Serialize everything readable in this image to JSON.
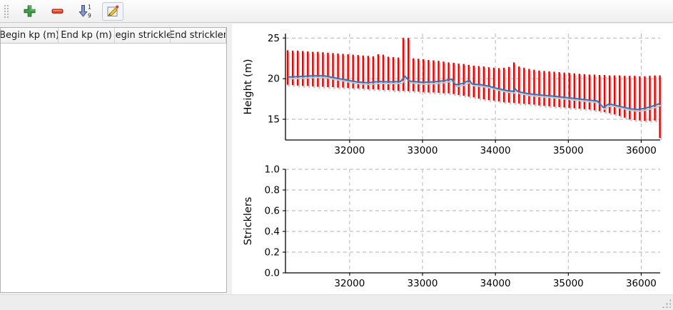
{
  "window": {
    "background": "#f0f0f0"
  },
  "toolbar": {
    "buttons": [
      {
        "id": "add-row",
        "icon": "plus-icon"
      },
      {
        "id": "remove-row",
        "icon": "minus-icon"
      },
      {
        "id": "sort-rows",
        "icon": "sort-numeric-icon",
        "sort_top_digit": "1",
        "sort_bottom_digit": "9"
      },
      {
        "id": "edit-row",
        "icon": "edit-pencil-icon"
      }
    ]
  },
  "table": {
    "columns": [
      "Begin kp (m)",
      "End kp (m)",
      "Begin strickler",
      "End strickler"
    ],
    "rows": []
  },
  "colors": {
    "bar_red": "#f40000",
    "line_blue": "#3973b7",
    "shadow_gray": "#c9c9c9",
    "grid_gray": "#b0b0b0",
    "axis_black": "#000000",
    "toolbar_green": "#3f9e46",
    "toolbar_red": "#e8402a",
    "sort_arrow_blue": "#8298c8"
  },
  "chart_data": [
    {
      "type": "line",
      "title": "",
      "xlabel": "",
      "ylabel": "Height (m)",
      "xlim": [
        31120,
        36260
      ],
      "ylim": [
        12.45,
        25.55
      ],
      "xticks": [
        32000,
        33000,
        34000,
        35000,
        36000
      ],
      "xtick_labels": [
        "32000",
        "33000",
        "34000",
        "35000",
        "36000"
      ],
      "yticks": [
        15,
        20,
        25
      ],
      "ytick_labels": [
        "15",
        "20",
        "25"
      ],
      "grid": true,
      "legend": "none",
      "bars": {
        "name": "cross-section min/max range",
        "color": "#f40000",
        "kp": [
          31150,
          31219,
          31288,
          31357,
          31426,
          31495,
          31564,
          31633,
          31702,
          31771,
          31840,
          31909,
          31978,
          32047,
          32116,
          32185,
          32254,
          32323,
          32392,
          32461,
          32530,
          32599,
          32668,
          32737,
          32806,
          32875,
          32944,
          33013,
          33082,
          33151,
          33220,
          33289,
          33358,
          33427,
          33496,
          33565,
          33634,
          33703,
          33772,
          33841,
          33910,
          33979,
          34048,
          34117,
          34186,
          34255,
          34324,
          34393,
          34462,
          34531,
          34600,
          34669,
          34738,
          34807,
          34876,
          34945,
          35014,
          35083,
          35152,
          35221,
          35290,
          35359,
          35428,
          35497,
          35566,
          35635,
          35704,
          35773,
          35842,
          35911,
          35980,
          36049,
          36118,
          36187,
          36256
        ],
        "top": [
          23.5,
          23.45,
          23.45,
          23.4,
          23.35,
          23.3,
          23.3,
          23.25,
          23.2,
          23.15,
          23.1,
          23.05,
          23.0,
          22.95,
          22.9,
          22.85,
          22.8,
          22.75,
          23.0,
          22.95,
          22.7,
          22.65,
          22.6,
          25.0,
          25.0,
          22.5,
          22.45,
          22.4,
          22.3,
          22.25,
          22.2,
          22.1,
          22.0,
          21.95,
          21.85,
          21.8,
          21.7,
          21.6,
          21.55,
          21.5,
          21.4,
          21.35,
          21.3,
          21.35,
          21.45,
          22.0,
          21.5,
          21.35,
          21.2,
          21.1,
          21.0,
          20.95,
          20.9,
          20.85,
          20.8,
          20.75,
          20.7,
          20.65,
          20.6,
          20.55,
          20.5,
          20.5,
          20.45,
          20.45,
          20.4,
          20.4,
          20.4,
          20.35,
          20.35,
          20.35,
          20.3,
          20.3,
          20.35,
          20.4,
          20.4
        ],
        "bottom": [
          19.25,
          19.2,
          19.15,
          19.1,
          19.1,
          19.05,
          19.0,
          19.0,
          18.95,
          18.95,
          18.9,
          18.9,
          18.85,
          18.8,
          18.8,
          18.75,
          18.7,
          18.7,
          18.65,
          18.6,
          18.6,
          18.55,
          18.5,
          18.5,
          18.45,
          18.45,
          18.4,
          18.35,
          18.3,
          18.3,
          18.25,
          18.2,
          18.2,
          18.1,
          18.0,
          17.9,
          17.8,
          17.7,
          17.55,
          17.45,
          17.35,
          17.3,
          17.2,
          17.1,
          17.05,
          17.0,
          16.95,
          16.9,
          16.85,
          16.8,
          16.7,
          16.65,
          16.6,
          16.55,
          16.5,
          16.45,
          16.4,
          16.35,
          16.3,
          16.25,
          16.2,
          16.1,
          16.0,
          15.9,
          15.75,
          15.6,
          15.4,
          15.2,
          15.0,
          14.9,
          14.85,
          14.8,
          14.8,
          14.85,
          12.7
        ]
      },
      "line": {
        "name": "water/bed profile",
        "color": "#3973b7",
        "kp": [
          31150,
          31300,
          31500,
          31650,
          31800,
          31950,
          32100,
          32250,
          32400,
          32550,
          32700,
          32760,
          32820,
          33000,
          33150,
          33300,
          33400,
          33450,
          33550,
          33640,
          33680,
          33800,
          33900,
          34000,
          34150,
          34240,
          34270,
          34310,
          34450,
          34600,
          34800,
          35000,
          35200,
          35400,
          35480,
          35560,
          35700,
          35850,
          35950,
          36050,
          36150,
          36256
        ],
        "height": [
          20.2,
          20.25,
          20.35,
          20.35,
          20.1,
          19.85,
          19.6,
          19.5,
          19.65,
          19.6,
          19.65,
          20.3,
          19.7,
          19.55,
          19.6,
          19.75,
          19.95,
          19.25,
          19.4,
          19.8,
          19.35,
          19.25,
          19.1,
          18.85,
          18.55,
          18.45,
          18.75,
          18.4,
          18.15,
          18.0,
          17.85,
          17.65,
          17.45,
          17.25,
          16.45,
          16.9,
          16.6,
          16.3,
          16.2,
          16.35,
          16.6,
          16.95
        ]
      }
    },
    {
      "type": "line",
      "title": "",
      "xlabel": "",
      "ylabel": "Stricklers",
      "xlim": [
        31120,
        36260
      ],
      "ylim": [
        0,
        1
      ],
      "xticks": [
        32000,
        33000,
        34000,
        35000,
        36000
      ],
      "xtick_labels": [
        "32000",
        "33000",
        "34000",
        "35000",
        "36000"
      ],
      "yticks": [
        0,
        0.2,
        0.4,
        0.6,
        0.8,
        1.0
      ],
      "ytick_labels": [
        "0.0",
        "0.2",
        "0.4",
        "0.6",
        "0.8",
        "1.0"
      ],
      "grid": true,
      "legend": "none",
      "series": []
    }
  ]
}
